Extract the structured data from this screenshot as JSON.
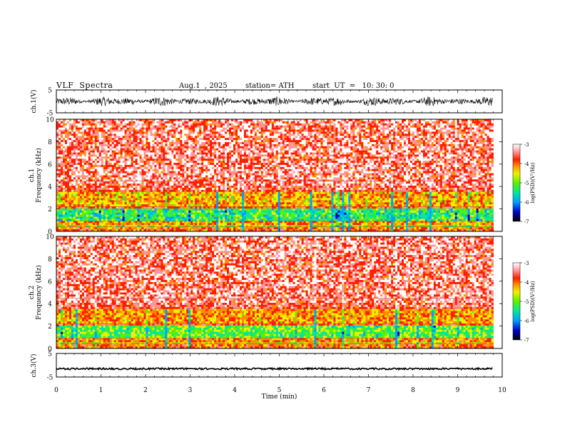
{
  "header": {
    "title": "VLF  Spectra",
    "date": "Aug.1  , 2025",
    "station": "station= ATH",
    "start": "start  UT  =   10: 30: 0"
  },
  "colors": {
    "background": "#ffffff",
    "axis": "#000000",
    "colormap": [
      "#000000",
      "#0000c8",
      "#00a0ff",
      "#00e6a0",
      "#5ef000",
      "#f0f000",
      "#ff8c00",
      "#ff1e00",
      "#ff9696",
      "#ffffff"
    ]
  },
  "chart_data": [
    {
      "type": "line",
      "id": "ch1-waveform",
      "ylabel": "ch.1(V)",
      "ylim": [
        -5,
        5
      ],
      "yticks": [
        -5,
        5
      ],
      "xlim": [
        0,
        10
      ],
      "x_end": 9.8,
      "description_values": {
        "typical_amplitude_min": -2,
        "typical_amplitude_max": 2
      }
    },
    {
      "type": "heatmap",
      "id": "ch1-spectrogram",
      "ylabel": "Frequency  (kHz)",
      "channel_label": "ch.1",
      "ylim": [
        0,
        10
      ],
      "yticks": [
        0,
        2,
        4,
        6,
        8,
        10
      ],
      "xlim": [
        0,
        10
      ],
      "x_end": 9.8,
      "colorbar": {
        "label": "log(PSD)(V²/Hz)",
        "range": [
          -7,
          -3
        ],
        "ticks": [
          -3,
          -4,
          -5,
          -6,
          -7
        ]
      },
      "bands_khz": [
        {
          "from": 0.0,
          "to": 0.3,
          "level": -4.2
        },
        {
          "from": 0.3,
          "to": 0.6,
          "level": -5.0
        },
        {
          "from": 0.6,
          "to": 1.0,
          "level": -4.4
        },
        {
          "from": 1.0,
          "to": 2.0,
          "level": -5.4
        },
        {
          "from": 2.0,
          "to": 2.3,
          "level": -4.0
        },
        {
          "from": 2.3,
          "to": 3.6,
          "level": -4.5
        },
        {
          "from": 3.6,
          "to": 10.0,
          "level": -3.8
        }
      ]
    },
    {
      "type": "heatmap",
      "id": "ch2-spectrogram",
      "ylabel": "Frequency  (kHz)",
      "channel_label": "ch.2",
      "ylim": [
        0,
        10
      ],
      "yticks": [
        0,
        2,
        4,
        6,
        8,
        10
      ],
      "xlim": [
        0,
        10
      ],
      "x_end": 9.8,
      "colorbar": {
        "label": "log(PSD)(V²/Hz)",
        "range": [
          -7,
          -3
        ],
        "ticks": [
          -3,
          -4,
          -5,
          -6,
          -7
        ]
      },
      "bands_khz": [
        {
          "from": 0.0,
          "to": 0.3,
          "level": -4.2
        },
        {
          "from": 0.3,
          "to": 0.6,
          "level": -4.8
        },
        {
          "from": 0.6,
          "to": 1.0,
          "level": -4.3
        },
        {
          "from": 1.0,
          "to": 2.0,
          "level": -5.2
        },
        {
          "from": 2.0,
          "to": 2.3,
          "level": -4.0
        },
        {
          "from": 2.3,
          "to": 3.6,
          "level": -4.4
        },
        {
          "from": 3.6,
          "to": 10.0,
          "level": -3.8
        }
      ]
    },
    {
      "type": "line",
      "id": "ch3-waveform",
      "ylabel": "ch.3(V)",
      "ylim": [
        -5,
        5
      ],
      "yticks": [
        -5,
        5
      ],
      "xlim": [
        0,
        10
      ],
      "x_end": 9.8,
      "xlabel": "Time  (min)",
      "xticks": [
        0,
        1,
        2,
        3,
        4,
        5,
        6,
        7,
        8,
        9,
        10
      ],
      "description_values": {
        "offset": -1.5
      }
    }
  ]
}
